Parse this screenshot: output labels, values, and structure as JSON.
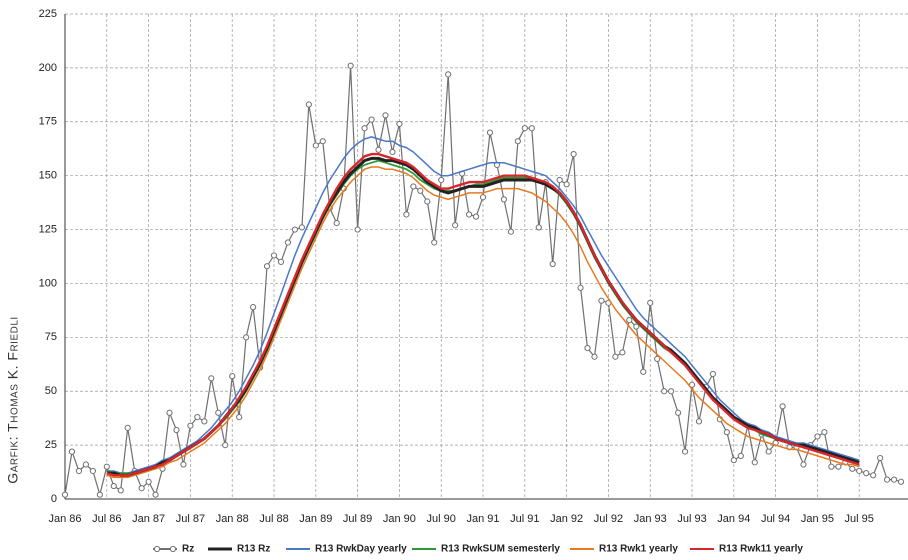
{
  "chart_data": {
    "type": "line",
    "credit": "Garfik: Thomas K. Friedli",
    "categories": [
      "Jan 86",
      null,
      null,
      null,
      null,
      null,
      "Jul 86",
      null,
      null,
      null,
      null,
      null,
      "Jan 87",
      null,
      null,
      null,
      null,
      null,
      "Jul 87",
      null,
      null,
      null,
      null,
      null,
      "Jan 88",
      null,
      null,
      null,
      null,
      null,
      "Jul 88",
      null,
      null,
      null,
      null,
      null,
      "Jan 89",
      null,
      null,
      null,
      null,
      null,
      "Jul 89",
      null,
      null,
      null,
      null,
      null,
      "Jan 90",
      null,
      null,
      null,
      null,
      null,
      "Jul 90",
      null,
      null,
      null,
      null,
      null,
      "Jan 91",
      null,
      null,
      null,
      null,
      null,
      "Jul 91",
      null,
      null,
      null,
      null,
      null,
      "Jan 92",
      null,
      null,
      null,
      null,
      null,
      "Jul 92",
      null,
      null,
      null,
      null,
      null,
      "Jan 93",
      null,
      null,
      null,
      null,
      null,
      "Jul 93",
      null,
      null,
      null,
      null,
      null,
      "Jan 94",
      null,
      null,
      null,
      null,
      null,
      "Jul 94",
      null,
      null,
      null,
      null,
      null,
      "Jan 95",
      null,
      null,
      null,
      null,
      null,
      "Jul 95",
      null,
      null,
      null,
      null,
      null,
      null
    ],
    "ylim": [
      0,
      225
    ],
    "yticks": [
      0,
      25,
      50,
      75,
      100,
      125,
      150,
      175,
      200,
      225
    ],
    "grid": true,
    "series": [
      {
        "name": "Rz",
        "color": "#707070",
        "markers": true,
        "values": [
          2,
          22,
          13,
          16,
          13,
          2,
          15,
          6,
          4,
          33,
          13,
          5,
          8,
          2,
          14,
          40,
          32,
          16,
          34,
          38,
          36,
          56,
          40,
          25,
          57,
          38,
          75,
          89,
          61,
          108,
          113,
          110,
          119,
          125,
          126,
          183,
          164,
          166,
          135,
          128,
          144,
          201,
          125,
          172,
          176,
          162,
          178,
          161,
          174,
          132,
          145,
          143,
          138,
          119,
          148,
          197,
          127,
          151,
          132,
          131,
          140,
          170,
          155,
          139,
          124,
          166,
          172,
          172,
          126,
          147,
          109,
          148,
          146,
          160,
          98,
          70,
          66,
          92,
          91,
          66,
          68,
          83,
          80,
          59,
          91,
          65,
          50,
          50,
          40,
          22,
          53,
          36,
          52,
          58,
          37,
          31,
          18,
          20,
          34,
          17,
          30,
          22,
          26,
          43,
          24,
          24,
          16,
          25,
          29,
          31,
          15,
          15,
          17,
          14,
          13,
          12,
          11,
          19,
          9,
          9,
          8
        ]
      },
      {
        "name": "R13 Rz",
        "color": "#222222",
        "values": [
          null,
          null,
          null,
          null,
          null,
          null,
          12,
          12,
          11,
          11,
          12,
          13,
          14,
          15,
          17,
          18,
          20,
          22,
          24,
          26,
          28,
          31,
          34,
          38,
          42,
          46,
          51,
          57,
          63,
          70,
          78,
          86,
          94,
          102,
          110,
          117,
          124,
          131,
          137,
          142,
          147,
          151,
          154,
          157,
          158,
          158,
          157,
          157,
          156,
          155,
          153,
          150,
          147,
          145,
          143,
          142,
          143,
          144,
          145,
          145,
          145,
          146,
          147,
          148,
          148,
          148,
          148,
          148,
          147,
          146,
          144,
          142,
          138,
          133,
          127,
          120,
          113,
          107,
          101,
          96,
          91,
          87,
          83,
          80,
          77,
          74,
          71,
          69,
          66,
          63,
          59,
          55,
          51,
          47,
          44,
          41,
          38,
          36,
          34,
          33,
          31,
          30,
          28,
          27,
          26,
          25,
          25,
          24,
          23,
          22,
          21,
          20,
          19,
          18,
          17,
          null,
          null,
          null,
          null,
          null,
          null
        ]
      },
      {
        "name": "R13 RwkDay yearly",
        "color": "#4a78c8",
        "values": [
          null,
          null,
          null,
          null,
          null,
          null,
          13,
          13,
          12,
          12,
          13,
          14,
          15,
          16,
          18,
          19,
          21,
          23,
          25,
          27,
          30,
          33,
          37,
          41,
          45,
          50,
          56,
          62,
          69,
          77,
          86,
          95,
          104,
          113,
          121,
          128,
          135,
          142,
          148,
          153,
          158,
          162,
          165,
          167,
          168,
          167,
          166,
          166,
          164,
          163,
          161,
          158,
          155,
          152,
          150,
          150,
          151,
          152,
          153,
          154,
          155,
          156,
          156,
          156,
          155,
          154,
          153,
          152,
          151,
          150,
          147,
          144,
          140,
          136,
          131,
          125,
          119,
          113,
          108,
          103,
          98,
          93,
          88,
          84,
          81,
          78,
          75,
          72,
          69,
          66,
          62,
          58,
          54,
          50,
          46,
          43,
          40,
          37,
          35,
          34,
          32,
          31,
          29,
          28,
          27,
          26,
          26,
          25,
          24,
          23,
          22,
          21,
          20,
          19,
          18,
          null,
          null,
          null,
          null,
          null,
          null
        ]
      },
      {
        "name": "R13 RwkSUM semesterly",
        "color": "#2e9a3a",
        "values": [
          null,
          null,
          null,
          null,
          null,
          null,
          13,
          12,
          12,
          12,
          12,
          13,
          14,
          15,
          17,
          18,
          20,
          22,
          24,
          26,
          28,
          31,
          34,
          37,
          41,
          45,
          50,
          56,
          62,
          69,
          77,
          85,
          93,
          101,
          109,
          116,
          123,
          130,
          136,
          141,
          146,
          150,
          153,
          155,
          156,
          157,
          156,
          155,
          154,
          153,
          151,
          148,
          146,
          144,
          143,
          143,
          143,
          144,
          145,
          146,
          146,
          147,
          148,
          149,
          149,
          149,
          149,
          149,
          148,
          146,
          144,
          141,
          137,
          132,
          126,
          119,
          112,
          106,
          100,
          95,
          90,
          86,
          82,
          79,
          76,
          73,
          70,
          68,
          65,
          62,
          58,
          54,
          50,
          46,
          43,
          40,
          37,
          35,
          33,
          32,
          30,
          29,
          28,
          27,
          26,
          25,
          24,
          23,
          22,
          21,
          20,
          19,
          18,
          17,
          16,
          null,
          null,
          null,
          null,
          null,
          null
        ]
      },
      {
        "name": "R13 Rwk1 yearly",
        "color": "#e87a1e",
        "values": [
          null,
          null,
          null,
          null,
          null,
          null,
          11,
          10,
          10,
          10,
          11,
          12,
          13,
          14,
          15,
          17,
          18,
          20,
          22,
          24,
          26,
          29,
          32,
          35,
          39,
          43,
          48,
          54,
          60,
          67,
          75,
          83,
          91,
          99,
          107,
          114,
          121,
          128,
          134,
          139,
          143,
          147,
          150,
          153,
          154,
          154,
          153,
          153,
          152,
          151,
          149,
          146,
          143,
          141,
          140,
          139,
          140,
          141,
          142,
          142,
          142,
          143,
          144,
          144,
          144,
          144,
          143,
          142,
          140,
          138,
          135,
          132,
          128,
          123,
          117,
          110,
          104,
          98,
          93,
          88,
          84,
          80,
          76,
          73,
          70,
          67,
          64,
          61,
          58,
          55,
          51,
          47,
          44,
          41,
          38,
          35,
          33,
          31,
          29,
          28,
          27,
          26,
          25,
          24,
          23,
          23,
          22,
          21,
          20,
          19,
          18,
          17,
          16,
          16,
          15,
          null,
          null,
          null,
          null,
          null,
          null
        ]
      },
      {
        "name": "R13 Rwk11 yearly",
        "color": "#d8262b",
        "values": [
          null,
          null,
          null,
          null,
          null,
          null,
          12,
          11,
          11,
          11,
          12,
          13,
          14,
          15,
          16,
          18,
          20,
          22,
          24,
          26,
          28,
          31,
          34,
          38,
          42,
          47,
          52,
          58,
          64,
          71,
          79,
          87,
          95,
          103,
          111,
          118,
          125,
          132,
          138,
          144,
          149,
          153,
          156,
          159,
          160,
          160,
          159,
          158,
          157,
          156,
          154,
          151,
          148,
          146,
          144,
          144,
          145,
          146,
          147,
          147,
          147,
          148,
          149,
          150,
          150,
          150,
          150,
          149,
          148,
          147,
          145,
          142,
          138,
          133,
          127,
          120,
          113,
          107,
          101,
          96,
          91,
          87,
          83,
          80,
          77,
          74,
          71,
          68,
          65,
          62,
          58,
          54,
          50,
          46,
          43,
          40,
          37,
          35,
          33,
          32,
          31,
          30,
          28,
          27,
          26,
          25,
          24,
          23,
          22,
          21,
          20,
          19,
          18,
          17,
          16,
          null,
          null,
          null,
          null,
          null,
          null
        ]
      }
    ]
  }
}
